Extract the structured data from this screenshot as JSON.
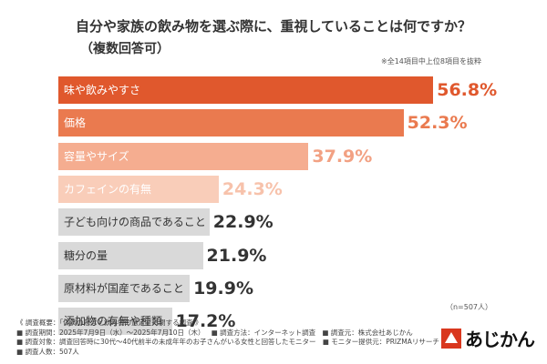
{
  "title": "自分や家族の飲み物を選ぶ際に、重視していることは何ですか？",
  "subtitle": "（複数回答可）",
  "note": "※全14項目中上位8項目を抜粋",
  "sample": "（n=507人）",
  "chart_data": {
    "type": "bar",
    "orientation": "horizontal",
    "categories": [
      "味や飲みやすさ",
      "価格",
      "容量やサイズ",
      "カフェインの有無",
      "子ども向けの商品であること",
      "糖分の量",
      "原材料が国産であること",
      "添加物の有無や種類"
    ],
    "values": [
      56.8,
      52.3,
      37.9,
      24.3,
      22.9,
      21.9,
      19.9,
      17.2
    ],
    "value_labels": [
      "56.8%",
      "52.3%",
      "37.9%",
      "24.3%",
      "22.9%",
      "21.9%",
      "19.9%",
      "17.2%"
    ],
    "xlim": [
      0,
      60
    ],
    "colors": [
      "#e0582d",
      "#ea7a4f",
      "#f5ad90",
      "#f9cdb9",
      "#d9d9d9",
      "#d9d9d9",
      "#d9d9d9",
      "#d9d9d9"
    ],
    "value_colors": [
      "#e0582d",
      "#ea7a4f",
      "#f2a183",
      "#f7c2ab",
      "#333333",
      "#333333",
      "#333333",
      "#333333"
    ],
    "label_colors": [
      "#ffffff",
      "#ffffff",
      "#ffffff",
      "#ffffff",
      "#333333",
      "#333333",
      "#333333",
      "#333333"
    ]
  },
  "footer": {
    "rows": [
      [
        "《 調査概要：「体調の懸念と飲み物の選定」に関する調査 》"
      ],
      [
        "■ 調査期間：2025年7月9日（水）〜2025年7月10日（木）",
        "■ 調査方法：インターネット調査",
        "■ 調査元：株式会社あじかん"
      ],
      [
        "■ 調査対象：調査回答時に30代〜40代前半の未成年年のお子さんがいる女性と回答したモニター",
        "■ モニター提供元：PRIZMAリサーチ"
      ],
      [
        "■ 調査人数：507人"
      ]
    ]
  },
  "logo": {
    "text": "あじかん",
    "icon": "ajikan-logo-icon"
  }
}
